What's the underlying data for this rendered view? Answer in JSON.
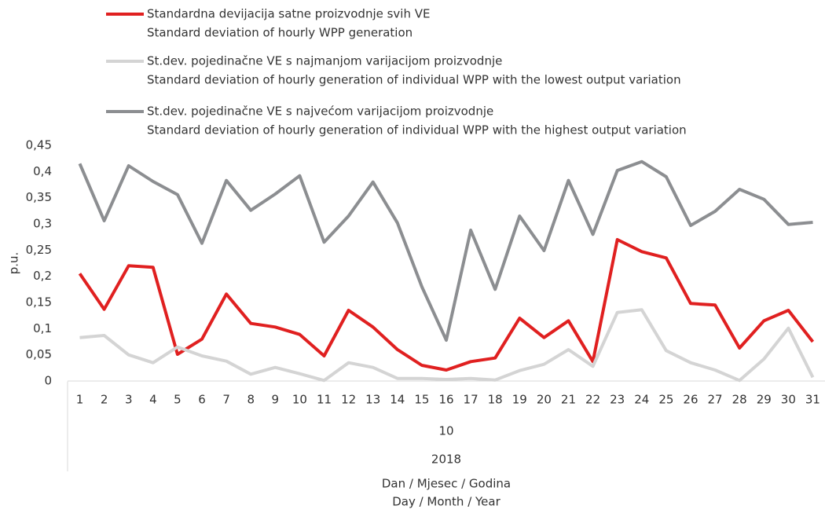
{
  "chart_data": {
    "type": "line",
    "y_label": "p.u.",
    "x_label": [
      "Dan / Mjesec / Godina",
      "Day / Month / Year"
    ],
    "month_label": "10",
    "year_label": "2018",
    "categories": [
      "1",
      "2",
      "3",
      "4",
      "5",
      "6",
      "7",
      "8",
      "9",
      "10",
      "11",
      "12",
      "13",
      "14",
      "15",
      "16",
      "17",
      "18",
      "19",
      "20",
      "21",
      "22",
      "23",
      "24",
      "25",
      "26",
      "27",
      "28",
      "29",
      "30",
      "31"
    ],
    "ylim": [
      0,
      0.45
    ],
    "yticks": [
      0,
      {
        "value": 0.05,
        "label": "0,05"
      },
      {
        "value": 0.1,
        "label": "0,1"
      },
      {
        "value": 0.15,
        "label": "0,15"
      },
      {
        "value": 0.2,
        "label": "0,2"
      },
      {
        "value": 0.25,
        "label": "0,25"
      },
      {
        "value": 0.3,
        "label": "0,3"
      },
      {
        "value": 0.35,
        "label": "0,35"
      },
      {
        "value": 0.4,
        "label": "0,4"
      },
      {
        "value": 0.45,
        "label": "0,45"
      }
    ],
    "grid": false,
    "series": [
      {
        "name": "Standardna devijacija satne proizvodnje svih VE",
        "name_en": "Standard deviation of hourly WPP generation",
        "color": "#e02020",
        "values": [
          0.205,
          0.137,
          0.22,
          0.217,
          0.051,
          0.08,
          0.166,
          0.11,
          0.103,
          0.089,
          0.048,
          0.135,
          0.103,
          0.06,
          0.03,
          0.021,
          0.037,
          0.044,
          0.12,
          0.083,
          0.115,
          0.037,
          0.27,
          0.247,
          0.235,
          0.148,
          0.145,
          0.063,
          0.115,
          0.135,
          0.075
        ]
      },
      {
        "name": "St.dev. pojedinačne VE s najmanjom varijacijom proizvodnje",
        "name_en": "Standard deviation of hourly generation of individual WPP with the lowest output variation",
        "color": "#d4d4d4",
        "values": [
          0.083,
          0.087,
          0.05,
          0.035,
          0.065,
          0.048,
          0.038,
          0.013,
          0.026,
          0.014,
          0.001,
          0.035,
          0.026,
          0.005,
          0.005,
          0.003,
          0.005,
          0.002,
          0.02,
          0.032,
          0.06,
          0.028,
          0.131,
          0.136,
          0.058,
          0.035,
          0.021,
          0.001,
          0.042,
          0.101,
          0.007
        ]
      },
      {
        "name": "St.dev. pojedinačne VE s najvećom varijacijom proizvodnje",
        "name_en": "Standard deviation of hourly generation of individual WPP with the highest output variation",
        "color": "#8c8e91",
        "values": [
          0.415,
          0.306,
          0.411,
          0.381,
          0.356,
          0.263,
          0.383,
          0.326,
          0.357,
          0.392,
          0.265,
          0.315,
          0.38,
          0.302,
          0.18,
          0.078,
          0.288,
          0.175,
          0.315,
          0.249,
          0.383,
          0.28,
          0.402,
          0.419,
          0.39,
          0.297,
          0.324,
          0.366,
          0.347,
          0.299,
          0.303
        ]
      }
    ]
  }
}
